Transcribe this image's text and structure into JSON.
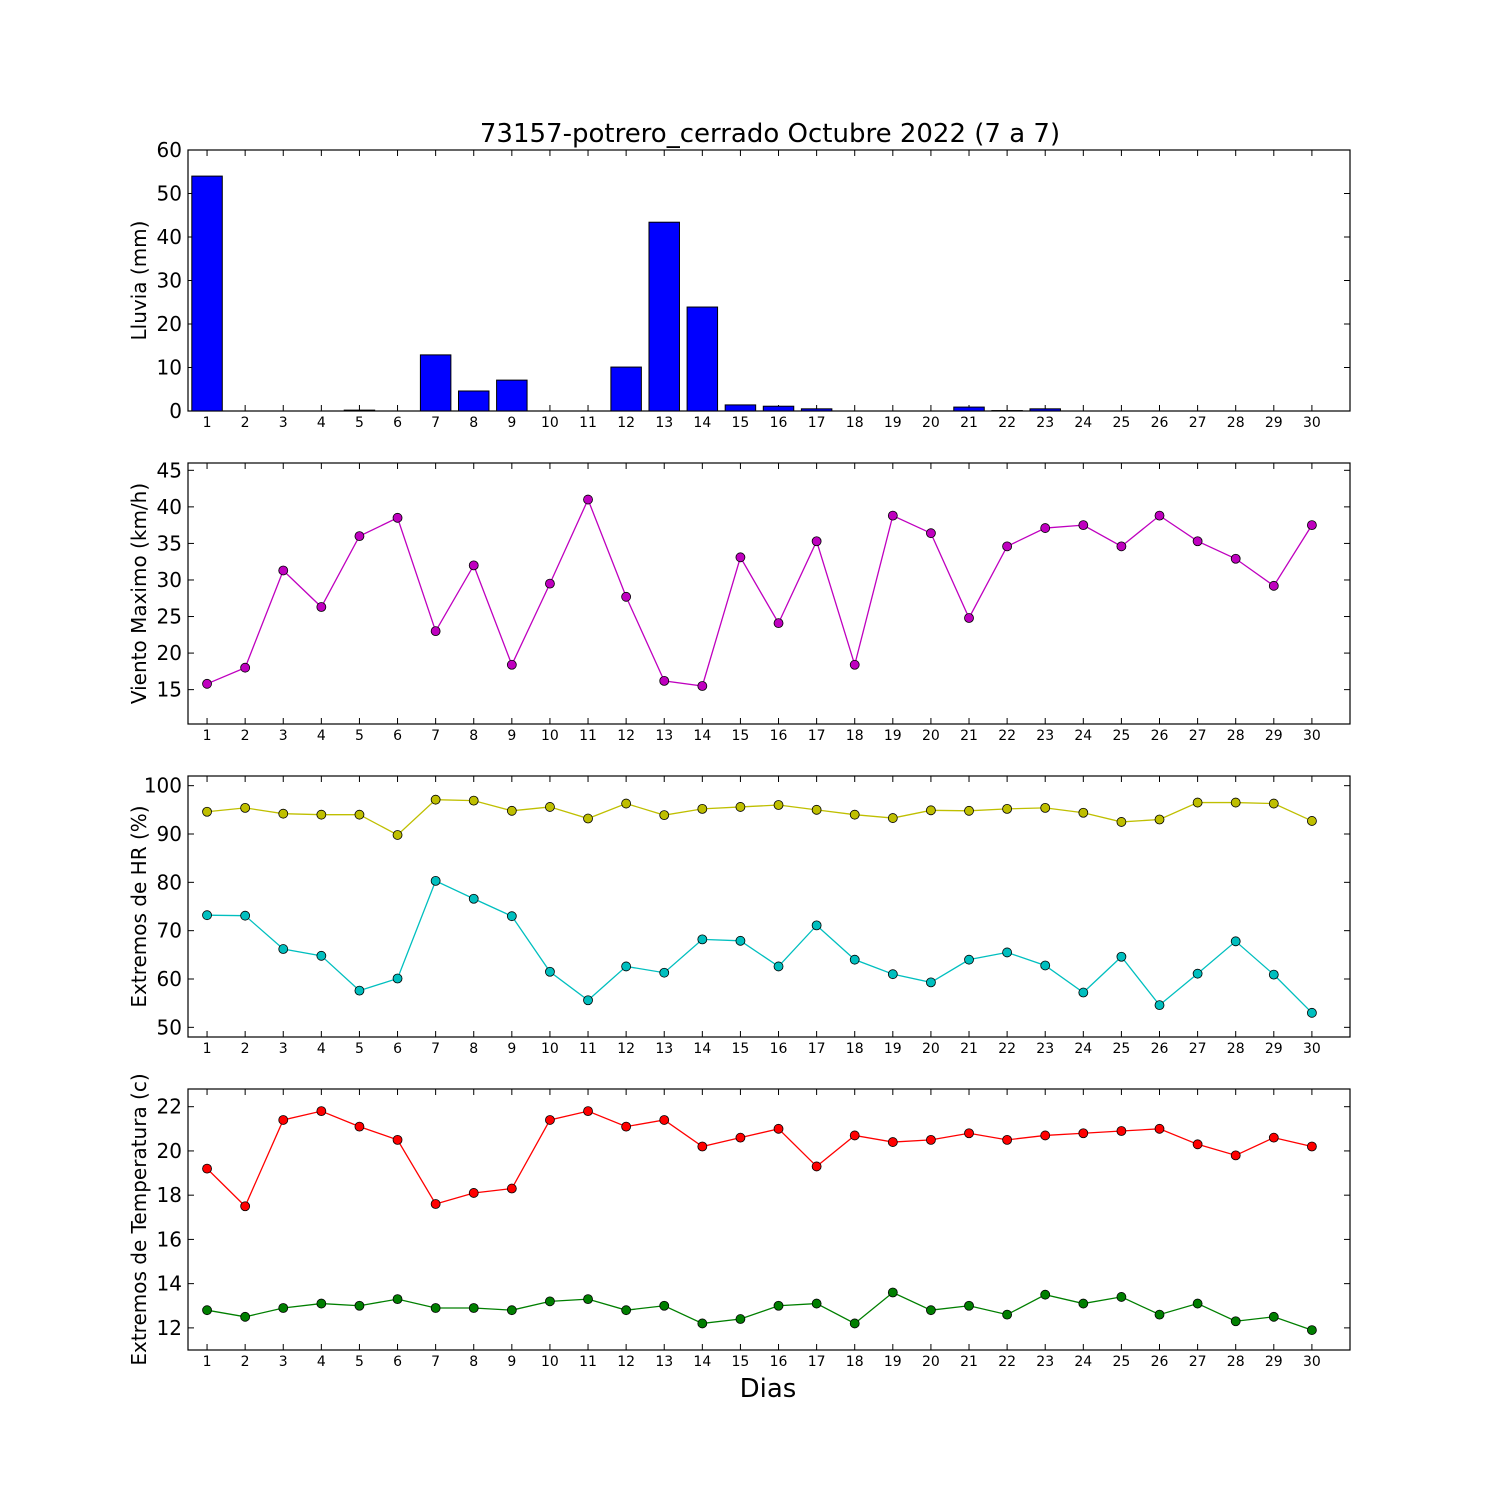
{
  "chart_data": [
    {
      "type": "bar",
      "title": "73157-potrero_cerrado Octubre 2022  (7 a 7)",
      "ylabel": "Lluvia (mm)",
      "ylim": [
        0,
        60
      ],
      "yticks": [
        0,
        10,
        20,
        30,
        40,
        50,
        60
      ],
      "color": "#0000ff",
      "x": [
        1,
        2,
        3,
        4,
        5,
        6,
        7,
        8,
        9,
        10,
        11,
        12,
        13,
        14,
        15,
        16,
        17,
        18,
        19,
        20,
        21,
        22,
        23,
        24,
        25,
        26,
        27,
        28,
        29,
        30
      ],
      "values": [
        54.0,
        0,
        0,
        0,
        0.2,
        0,
        12.9,
        4.6,
        7.1,
        0,
        0,
        10.1,
        43.4,
        23.9,
        1.4,
        1.1,
        0.5,
        0,
        0,
        0,
        0.9,
        0.1,
        0.5,
        0,
        0,
        0,
        0,
        0,
        0,
        0
      ]
    },
    {
      "type": "line",
      "ylabel": "Viento Maximo (km/h)",
      "ylim": [
        10.3,
        46
      ],
      "yticks": [
        15,
        20,
        25,
        30,
        35,
        40,
        45
      ],
      "x": [
        1,
        2,
        3,
        4,
        5,
        6,
        7,
        8,
        9,
        10,
        11,
        12,
        13,
        14,
        15,
        16,
        17,
        18,
        19,
        20,
        21,
        22,
        23,
        24,
        25,
        26,
        27,
        28,
        29,
        30
      ],
      "series": [
        {
          "color": "#bf00bf",
          "values": [
            15.8,
            18.0,
            31.3,
            26.3,
            36.0,
            38.5,
            23.0,
            32.0,
            18.4,
            29.5,
            41.0,
            27.7,
            16.2,
            15.5,
            33.1,
            24.1,
            35.3,
            18.4,
            38.8,
            36.4,
            24.8,
            34.6,
            37.1,
            37.5,
            34.6,
            38.8,
            35.3,
            32.9,
            29.2,
            37.5
          ]
        }
      ]
    },
    {
      "type": "line",
      "ylabel": "Extremos de HR (%)",
      "ylim": [
        48,
        102
      ],
      "yticks": [
        50,
        60,
        70,
        80,
        90,
        100
      ],
      "x": [
        1,
        2,
        3,
        4,
        5,
        6,
        7,
        8,
        9,
        10,
        11,
        12,
        13,
        14,
        15,
        16,
        17,
        18,
        19,
        20,
        21,
        22,
        23,
        24,
        25,
        26,
        27,
        28,
        29,
        30
      ],
      "series": [
        {
          "color": "#bfbf00",
          "values": [
            94.6,
            95.4,
            94.2,
            94.0,
            94.0,
            89.8,
            97.1,
            96.9,
            94.8,
            95.6,
            93.2,
            96.3,
            93.9,
            95.2,
            95.6,
            96.0,
            95.0,
            94.0,
            93.3,
            94.9,
            94.8,
            95.2,
            95.4,
            94.4,
            92.5,
            93.0,
            96.5,
            96.5,
            96.3,
            92.7
          ]
        },
        {
          "color": "#00bfbf",
          "values": [
            73.2,
            73.1,
            66.2,
            64.8,
            57.6,
            60.1,
            80.3,
            76.6,
            73.0,
            61.5,
            55.6,
            62.6,
            61.3,
            68.2,
            67.9,
            62.6,
            71.1,
            64.0,
            61.0,
            59.3,
            64.0,
            65.5,
            62.8,
            57.2,
            64.6,
            54.6,
            61.1,
            67.8,
            60.9,
            53.0
          ]
        }
      ]
    },
    {
      "type": "line",
      "ylabel": "Extremos de Temperatura (c)",
      "xlabel": "Dias",
      "ylim": [
        11,
        22.8
      ],
      "yticks": [
        12,
        14,
        16,
        18,
        20,
        22
      ],
      "x": [
        1,
        2,
        3,
        4,
        5,
        6,
        7,
        8,
        9,
        10,
        11,
        12,
        13,
        14,
        15,
        16,
        17,
        18,
        19,
        20,
        21,
        22,
        23,
        24,
        25,
        26,
        27,
        28,
        29,
        30
      ],
      "series": [
        {
          "color": "#ff0000",
          "values": [
            19.2,
            17.5,
            21.4,
            21.8,
            21.1,
            20.5,
            17.6,
            18.1,
            18.3,
            21.4,
            21.8,
            21.1,
            21.4,
            20.2,
            20.6,
            21.0,
            19.3,
            20.7,
            20.4,
            20.5,
            20.8,
            20.5,
            20.7,
            20.8,
            20.9,
            21.0,
            20.3,
            19.8,
            20.6,
            20.2
          ]
        },
        {
          "color": "#007f00",
          "values": [
            12.8,
            12.5,
            12.9,
            13.1,
            13.0,
            13.3,
            12.9,
            12.9,
            12.8,
            13.2,
            13.3,
            12.8,
            13.0,
            12.2,
            12.4,
            13.0,
            13.1,
            12.2,
            13.6,
            12.8,
            13.0,
            12.6,
            13.5,
            13.1,
            13.4,
            12.6,
            13.1,
            12.3,
            12.5,
            11.9
          ]
        }
      ]
    }
  ]
}
